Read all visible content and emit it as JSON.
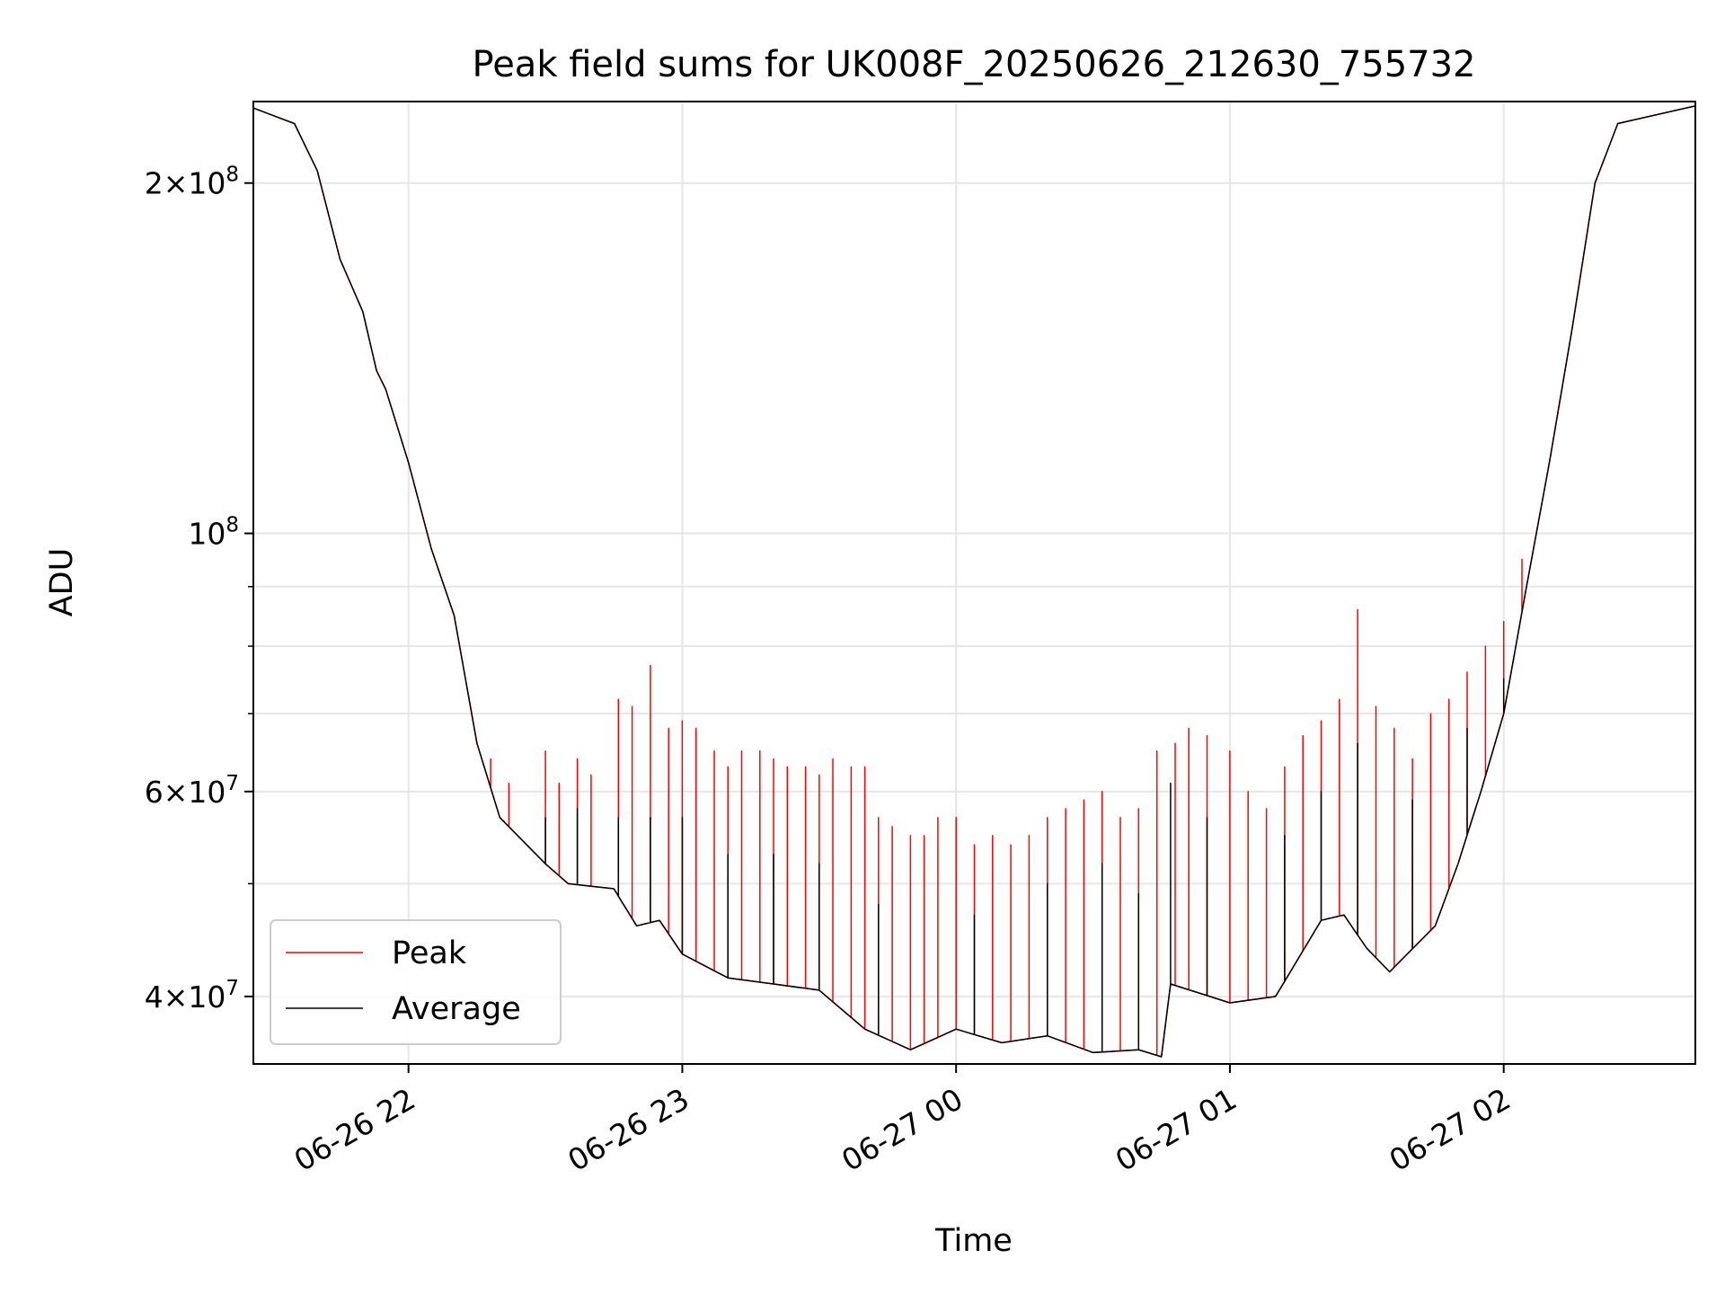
{
  "chart_data": {
    "type": "line",
    "title": "Peak field sums for UK008F_20250626_212630_755732",
    "xlabel": "Time",
    "ylabel": "ADU",
    "y_scale": "log",
    "ylim": [
      35000000,
      235000000
    ],
    "xlim": [
      "2025-06-26 21:26",
      "2025-06-27 02:42"
    ],
    "x_ticks": [
      {
        "value": "2025-06-26 22:00",
        "label": "06-26 22"
      },
      {
        "value": "2025-06-26 23:00",
        "label": "06-26 23"
      },
      {
        "value": "2025-06-27 00:00",
        "label": "06-27 00"
      },
      {
        "value": "2025-06-27 01:00",
        "label": "06-27 01"
      },
      {
        "value": "2025-06-27 02:00",
        "label": "06-27 02"
      }
    ],
    "y_ticks": [
      {
        "value": 40000000,
        "mantissa": "4",
        "exponent": "7"
      },
      {
        "value": 60000000,
        "mantissa": "6",
        "exponent": "7"
      },
      {
        "value": 100000000,
        "mantissa": "",
        "exponent": "8"
      },
      {
        "value": 200000000,
        "mantissa": "2",
        "exponent": "8"
      }
    ],
    "y_minor_ticks": [
      50000000,
      70000000,
      80000000,
      90000000
    ],
    "grid": true,
    "legend_position": "lower-left",
    "series": [
      {
        "name": "Peak",
        "color": "#ff0000",
        "points": [
          [
            "2025-06-26 21:26",
            232000000
          ],
          [
            "2025-06-26 21:35",
            225000000
          ],
          [
            "2025-06-26 21:40",
            205000000
          ],
          [
            "2025-06-26 21:45",
            172000000
          ],
          [
            "2025-06-26 21:50",
            155000000
          ],
          [
            "2025-06-26 21:53",
            138000000
          ],
          [
            "2025-06-26 21:55",
            133000000
          ],
          [
            "2025-06-26 22:00",
            115000000
          ],
          [
            "2025-06-26 22:05",
            97000000
          ],
          [
            "2025-06-26 22:10",
            85000000
          ],
          [
            "2025-06-26 22:15",
            66000000
          ],
          [
            "2025-06-26 22:20",
            57000000
          ],
          [
            "2025-06-26 22:30",
            52000000
          ],
          [
            "2025-06-26 22:35",
            50000000
          ],
          [
            "2025-06-26 22:45",
            49500000
          ],
          [
            "2025-06-26 22:50",
            46000000
          ],
          [
            "2025-06-26 22:55",
            46500000
          ],
          [
            "2025-06-26 23:00",
            43500000
          ],
          [
            "2025-06-26 23:10",
            41500000
          ],
          [
            "2025-06-26 23:20",
            41000000
          ],
          [
            "2025-06-26 23:30",
            40500000
          ],
          [
            "2025-06-26 23:40",
            37500000
          ],
          [
            "2025-06-26 23:50",
            36000000
          ],
          [
            "2025-06-27 00:00",
            37500000
          ],
          [
            "2025-06-27 00:10",
            36500000
          ],
          [
            "2025-06-27 00:20",
            37000000
          ],
          [
            "2025-06-27 00:30",
            35800000
          ],
          [
            "2025-06-27 00:40",
            36000000
          ],
          [
            "2025-06-27 00:45",
            35500000
          ],
          [
            "2025-06-27 00:47",
            41000000
          ],
          [
            "2025-06-27 01:00",
            39500000
          ],
          [
            "2025-06-27 01:10",
            40000000
          ],
          [
            "2025-06-27 01:20",
            46500000
          ],
          [
            "2025-06-27 01:25",
            47000000
          ],
          [
            "2025-06-27 01:30",
            44000000
          ],
          [
            "2025-06-27 01:35",
            42000000
          ],
          [
            "2025-06-27 01:45",
            46000000
          ],
          [
            "2025-06-27 01:50",
            52000000
          ],
          [
            "2025-06-27 01:55",
            60000000
          ],
          [
            "2025-06-27 02:00",
            70000000
          ],
          [
            "2025-06-27 02:05",
            90000000
          ],
          [
            "2025-06-27 02:10",
            115000000
          ],
          [
            "2025-06-27 02:15",
            150000000
          ],
          [
            "2025-06-27 02:20",
            200000000
          ],
          [
            "2025-06-27 02:25",
            225000000
          ],
          [
            "2025-06-27 02:42",
            233000000
          ]
        ],
        "spikes": [
          [
            "2025-06-26 22:18",
            64000000
          ],
          [
            "2025-06-26 22:22",
            61000000
          ],
          [
            "2025-06-26 22:30",
            65000000
          ],
          [
            "2025-06-26 22:33",
            61000000
          ],
          [
            "2025-06-26 22:37",
            64000000
          ],
          [
            "2025-06-26 22:40",
            62000000
          ],
          [
            "2025-06-26 22:46",
            72000000
          ],
          [
            "2025-06-26 22:49",
            71000000
          ],
          [
            "2025-06-26 22:53",
            77000000
          ],
          [
            "2025-06-26 22:57",
            68000000
          ],
          [
            "2025-06-26 23:00",
            69000000
          ],
          [
            "2025-06-26 23:03",
            68000000
          ],
          [
            "2025-06-26 23:07",
            65000000
          ],
          [
            "2025-06-26 23:10",
            63000000
          ],
          [
            "2025-06-26 23:13",
            65000000
          ],
          [
            "2025-06-26 23:17",
            65000000
          ],
          [
            "2025-06-26 23:20",
            64000000
          ],
          [
            "2025-06-26 23:23",
            63000000
          ],
          [
            "2025-06-26 23:27",
            63000000
          ],
          [
            "2025-06-26 23:30",
            62000000
          ],
          [
            "2025-06-26 23:33",
            64000000
          ],
          [
            "2025-06-26 23:37",
            63000000
          ],
          [
            "2025-06-26 23:40",
            63000000
          ],
          [
            "2025-06-26 23:43",
            57000000
          ],
          [
            "2025-06-26 23:46",
            56000000
          ],
          [
            "2025-06-26 23:50",
            55000000
          ],
          [
            "2025-06-26 23:53",
            55000000
          ],
          [
            "2025-06-26 23:56",
            57000000
          ],
          [
            "2025-06-27 00:00",
            57000000
          ],
          [
            "2025-06-27 00:04",
            54000000
          ],
          [
            "2025-06-27 00:08",
            55000000
          ],
          [
            "2025-06-27 00:12",
            54000000
          ],
          [
            "2025-06-27 00:16",
            55000000
          ],
          [
            "2025-06-27 00:20",
            57000000
          ],
          [
            "2025-06-27 00:24",
            58000000
          ],
          [
            "2025-06-27 00:28",
            59000000
          ],
          [
            "2025-06-27 00:32",
            60000000
          ],
          [
            "2025-06-27 00:36",
            57000000
          ],
          [
            "2025-06-27 00:40",
            58000000
          ],
          [
            "2025-06-27 00:44",
            65000000
          ],
          [
            "2025-06-27 00:48",
            66000000
          ],
          [
            "2025-06-27 00:51",
            68000000
          ],
          [
            "2025-06-27 00:55",
            67000000
          ],
          [
            "2025-06-27 01:00",
            65000000
          ],
          [
            "2025-06-27 01:04",
            60000000
          ],
          [
            "2025-06-27 01:08",
            58000000
          ],
          [
            "2025-06-27 01:12",
            63000000
          ],
          [
            "2025-06-27 01:16",
            67000000
          ],
          [
            "2025-06-27 01:20",
            69000000
          ],
          [
            "2025-06-27 01:24",
            72000000
          ],
          [
            "2025-06-27 01:28",
            86000000
          ],
          [
            "2025-06-27 01:32",
            71000000
          ],
          [
            "2025-06-27 01:36",
            68000000
          ],
          [
            "2025-06-27 01:40",
            64000000
          ],
          [
            "2025-06-27 01:44",
            70000000
          ],
          [
            "2025-06-27 01:48",
            72000000
          ],
          [
            "2025-06-27 01:52",
            76000000
          ],
          [
            "2025-06-27 01:56",
            80000000
          ],
          [
            "2025-06-27 02:00",
            84000000
          ],
          [
            "2025-06-27 02:04",
            95000000
          ]
        ]
      },
      {
        "name": "Average",
        "color": "#000000",
        "points": [
          [
            "2025-06-26 21:26",
            232000000
          ],
          [
            "2025-06-26 21:35",
            225000000
          ],
          [
            "2025-06-26 21:40",
            205000000
          ],
          [
            "2025-06-26 21:45",
            172000000
          ],
          [
            "2025-06-26 21:50",
            155000000
          ],
          [
            "2025-06-26 21:53",
            138000000
          ],
          [
            "2025-06-26 21:55",
            133000000
          ],
          [
            "2025-06-26 22:00",
            115000000
          ],
          [
            "2025-06-26 22:05",
            97000000
          ],
          [
            "2025-06-26 22:10",
            85000000
          ],
          [
            "2025-06-26 22:15",
            66000000
          ],
          [
            "2025-06-26 22:20",
            57000000
          ],
          [
            "2025-06-26 22:30",
            52000000
          ],
          [
            "2025-06-26 22:35",
            50000000
          ],
          [
            "2025-06-26 22:45",
            49500000
          ],
          [
            "2025-06-26 22:50",
            46000000
          ],
          [
            "2025-06-26 22:55",
            46500000
          ],
          [
            "2025-06-26 23:00",
            43500000
          ],
          [
            "2025-06-26 23:10",
            41500000
          ],
          [
            "2025-06-26 23:20",
            41000000
          ],
          [
            "2025-06-26 23:30",
            40500000
          ],
          [
            "2025-06-26 23:40",
            37500000
          ],
          [
            "2025-06-26 23:50",
            36000000
          ],
          [
            "2025-06-27 00:00",
            37500000
          ],
          [
            "2025-06-27 00:10",
            36500000
          ],
          [
            "2025-06-27 00:20",
            37000000
          ],
          [
            "2025-06-27 00:30",
            35800000
          ],
          [
            "2025-06-27 00:40",
            36000000
          ],
          [
            "2025-06-27 00:45",
            35500000
          ],
          [
            "2025-06-27 00:47",
            41000000
          ],
          [
            "2025-06-27 01:00",
            39500000
          ],
          [
            "2025-06-27 01:10",
            40000000
          ],
          [
            "2025-06-27 01:20",
            46500000
          ],
          [
            "2025-06-27 01:25",
            47000000
          ],
          [
            "2025-06-27 01:30",
            44000000
          ],
          [
            "2025-06-27 01:35",
            42000000
          ],
          [
            "2025-06-27 01:45",
            46000000
          ],
          [
            "2025-06-27 01:50",
            52000000
          ],
          [
            "2025-06-27 01:55",
            60000000
          ],
          [
            "2025-06-27 02:00",
            70000000
          ],
          [
            "2025-06-27 02:05",
            90000000
          ],
          [
            "2025-06-27 02:10",
            115000000
          ],
          [
            "2025-06-27 02:15",
            150000000
          ],
          [
            "2025-06-27 02:20",
            200000000
          ],
          [
            "2025-06-27 02:25",
            225000000
          ],
          [
            "2025-06-27 02:42",
            233000000
          ]
        ],
        "spikes": [
          [
            "2025-06-26 22:30",
            57000000
          ],
          [
            "2025-06-26 22:37",
            58000000
          ],
          [
            "2025-06-26 22:46",
            57000000
          ],
          [
            "2025-06-26 22:53",
            57000000
          ],
          [
            "2025-06-26 23:00",
            57000000
          ],
          [
            "2025-06-26 23:10",
            53000000
          ],
          [
            "2025-06-26 23:20",
            53000000
          ],
          [
            "2025-06-26 23:30",
            52000000
          ],
          [
            "2025-06-26 23:43",
            48000000
          ],
          [
            "2025-06-27 00:04",
            47000000
          ],
          [
            "2025-06-27 00:20",
            50000000
          ],
          [
            "2025-06-27 00:32",
            52000000
          ],
          [
            "2025-06-27 00:40",
            49000000
          ],
          [
            "2025-06-27 00:47",
            61000000
          ],
          [
            "2025-06-27 00:55",
            57000000
          ],
          [
            "2025-06-27 01:12",
            55000000
          ],
          [
            "2025-06-27 01:20",
            60000000
          ],
          [
            "2025-06-27 01:28",
            66000000
          ],
          [
            "2025-06-27 01:40",
            59000000
          ],
          [
            "2025-06-27 01:52",
            68000000
          ],
          [
            "2025-06-27 02:00",
            75000000
          ]
        ]
      }
    ]
  }
}
